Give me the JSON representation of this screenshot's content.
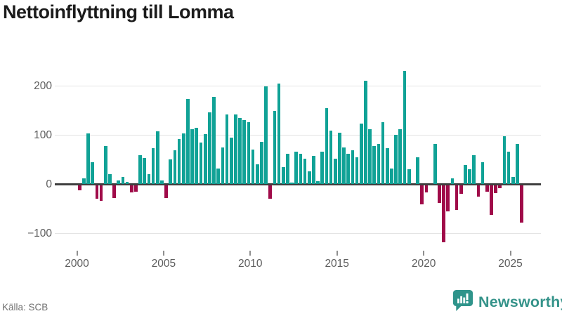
{
  "title": "Nettoinflyttning till Lomma",
  "source": "Källa: SCB",
  "logo": {
    "text": "Newsworthy"
  },
  "colors": {
    "positive": "#10a296",
    "negative": "#a00b49",
    "title_text": "#1b1b1b",
    "axis_text": "#5d5d5d",
    "grid": "#e4e4e4",
    "zero_line": "#3f3f3f",
    "source_text": "#707070",
    "logo_teal": "#35938a"
  },
  "chart_data": {
    "type": "bar",
    "title": "Nettoinflyttning till Lomma",
    "frequency": "quarterly",
    "start_period": "2000Q1",
    "end_period": "2025Q3",
    "values": [
      -10,
      11,
      103,
      45,
      -28,
      -32,
      77,
      20,
      -27,
      7,
      15,
      4,
      -15,
      -13,
      58,
      53,
      20,
      73,
      107,
      7,
      -27,
      50,
      69,
      92,
      103,
      173,
      111,
      115,
      85,
      101,
      146,
      177,
      32,
      75,
      141,
      94,
      142,
      135,
      130,
      126,
      70,
      40,
      86,
      198,
      -28,
      148,
      205,
      35,
      62,
      3,
      66,
      61,
      51,
      26,
      57,
      6,
      66,
      155,
      109,
      51,
      105,
      74,
      61,
      68,
      55,
      123,
      210,
      112,
      77,
      82,
      126,
      73,
      32,
      100,
      112,
      230,
      30,
      0,
      55,
      -39,
      -15,
      0,
      81,
      -37,
      -116,
      -53,
      11,
      -50,
      -18,
      38,
      30,
      58,
      -23,
      44,
      -13,
      -60,
      -17,
      -6,
      97,
      66,
      14,
      82,
      -77
    ],
    "y_ticks": [
      200,
      100,
      0,
      -100
    ],
    "x_tick_years": [
      2000,
      2005,
      2010,
      2015,
      2020,
      2025
    ],
    "ylim": [
      -130,
      245
    ],
    "grid": true,
    "legend": "none"
  }
}
